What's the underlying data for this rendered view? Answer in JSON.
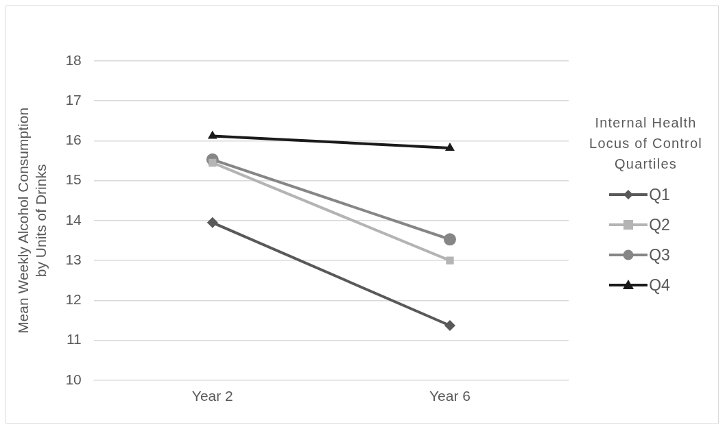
{
  "chart_data": {
    "type": "line",
    "ylabel": "Mean Weekly Alcohol Consumption by Units of Drinks",
    "legend_title": "Internal Health Locus of Control Quartiles",
    "categories": [
      "Year 2",
      "Year 6"
    ],
    "series": [
      {
        "name": "Q1",
        "color": "#595959",
        "marker": "diamond",
        "values": [
          13.95,
          11.37
        ]
      },
      {
        "name": "Q2",
        "color": "#b4b4b4",
        "marker": "square",
        "values": [
          15.45,
          13.0
        ]
      },
      {
        "name": "Q3",
        "color": "#868686",
        "marker": "circle",
        "values": [
          15.53,
          13.53
        ]
      },
      {
        "name": "Q4",
        "color": "#1a1a1a",
        "marker": "triangle",
        "values": [
          16.12,
          15.82
        ]
      }
    ],
    "ylim": [
      10,
      18
    ],
    "yticks": [
      10,
      11,
      12,
      13,
      14,
      15,
      16,
      17,
      18
    ],
    "grid": "y",
    "legend": "right",
    "line_style": "solid"
  }
}
